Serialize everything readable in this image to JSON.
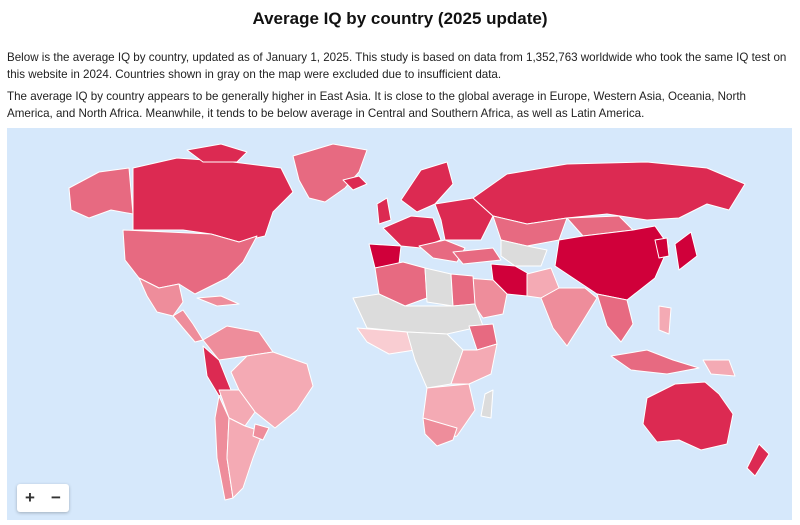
{
  "page": {
    "title": "Average IQ by country (2025 update)",
    "paragraph_1": "Below is the average IQ by country, updated as of January 1, 2025. This study is based on data from 1,352,763 worldwide who took the same IQ test on this website in 2024. Countries shown in gray on the map were excluded due to insufficient data.",
    "paragraph_2": "The average IQ by country appears to be generally higher in East Asia. It is close to the global average in Europe, Western Asia, Oceania, North America, and North Africa. Meanwhile, it tends to be below average in Central and Southern Africa, as well as Latin America."
  },
  "map": {
    "zoom_in_label": "+",
    "zoom_out_label": "−",
    "colors": {
      "ocean": "#d6e8fb",
      "excluded_gray": "#dcdcdc",
      "highest": "#d0003a",
      "high": "#dc2a52",
      "above_average": "#e76a81",
      "average": "#ee8d9b",
      "below_average": "#f4aab4",
      "low": "#f9cdd2",
      "border": "#ffffff"
    }
  }
}
